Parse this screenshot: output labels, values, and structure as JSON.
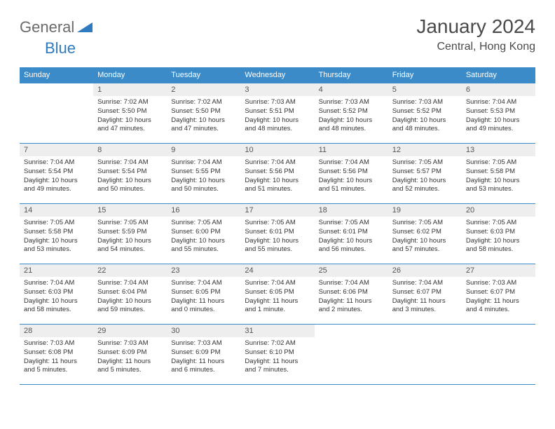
{
  "logo": {
    "general": "General",
    "blue": "Blue"
  },
  "title": "January 2024",
  "location": "Central, Hong Kong",
  "colors": {
    "header_bg": "#3b8bc9",
    "header_text": "#ffffff",
    "border": "#3b8bc9",
    "daynum_bg": "#eeeeee",
    "body_text": "#333333",
    "title_text": "#4a4a4a",
    "logo_gray": "#6b6b6b",
    "logo_blue": "#2f7bbf"
  },
  "weekdays": [
    "Sunday",
    "Monday",
    "Tuesday",
    "Wednesday",
    "Thursday",
    "Friday",
    "Saturday"
  ],
  "weeks": [
    [
      {
        "n": "",
        "sr": "",
        "ss": "",
        "dl": ""
      },
      {
        "n": "1",
        "sr": "Sunrise: 7:02 AM",
        "ss": "Sunset: 5:50 PM",
        "dl": "Daylight: 10 hours and 47 minutes."
      },
      {
        "n": "2",
        "sr": "Sunrise: 7:02 AM",
        "ss": "Sunset: 5:50 PM",
        "dl": "Daylight: 10 hours and 47 minutes."
      },
      {
        "n": "3",
        "sr": "Sunrise: 7:03 AM",
        "ss": "Sunset: 5:51 PM",
        "dl": "Daylight: 10 hours and 48 minutes."
      },
      {
        "n": "4",
        "sr": "Sunrise: 7:03 AM",
        "ss": "Sunset: 5:52 PM",
        "dl": "Daylight: 10 hours and 48 minutes."
      },
      {
        "n": "5",
        "sr": "Sunrise: 7:03 AM",
        "ss": "Sunset: 5:52 PM",
        "dl": "Daylight: 10 hours and 48 minutes."
      },
      {
        "n": "6",
        "sr": "Sunrise: 7:04 AM",
        "ss": "Sunset: 5:53 PM",
        "dl": "Daylight: 10 hours and 49 minutes."
      }
    ],
    [
      {
        "n": "7",
        "sr": "Sunrise: 7:04 AM",
        "ss": "Sunset: 5:54 PM",
        "dl": "Daylight: 10 hours and 49 minutes."
      },
      {
        "n": "8",
        "sr": "Sunrise: 7:04 AM",
        "ss": "Sunset: 5:54 PM",
        "dl": "Daylight: 10 hours and 50 minutes."
      },
      {
        "n": "9",
        "sr": "Sunrise: 7:04 AM",
        "ss": "Sunset: 5:55 PM",
        "dl": "Daylight: 10 hours and 50 minutes."
      },
      {
        "n": "10",
        "sr": "Sunrise: 7:04 AM",
        "ss": "Sunset: 5:56 PM",
        "dl": "Daylight: 10 hours and 51 minutes."
      },
      {
        "n": "11",
        "sr": "Sunrise: 7:04 AM",
        "ss": "Sunset: 5:56 PM",
        "dl": "Daylight: 10 hours and 51 minutes."
      },
      {
        "n": "12",
        "sr": "Sunrise: 7:05 AM",
        "ss": "Sunset: 5:57 PM",
        "dl": "Daylight: 10 hours and 52 minutes."
      },
      {
        "n": "13",
        "sr": "Sunrise: 7:05 AM",
        "ss": "Sunset: 5:58 PM",
        "dl": "Daylight: 10 hours and 53 minutes."
      }
    ],
    [
      {
        "n": "14",
        "sr": "Sunrise: 7:05 AM",
        "ss": "Sunset: 5:58 PM",
        "dl": "Daylight: 10 hours and 53 minutes."
      },
      {
        "n": "15",
        "sr": "Sunrise: 7:05 AM",
        "ss": "Sunset: 5:59 PM",
        "dl": "Daylight: 10 hours and 54 minutes."
      },
      {
        "n": "16",
        "sr": "Sunrise: 7:05 AM",
        "ss": "Sunset: 6:00 PM",
        "dl": "Daylight: 10 hours and 55 minutes."
      },
      {
        "n": "17",
        "sr": "Sunrise: 7:05 AM",
        "ss": "Sunset: 6:01 PM",
        "dl": "Daylight: 10 hours and 55 minutes."
      },
      {
        "n": "18",
        "sr": "Sunrise: 7:05 AM",
        "ss": "Sunset: 6:01 PM",
        "dl": "Daylight: 10 hours and 56 minutes."
      },
      {
        "n": "19",
        "sr": "Sunrise: 7:05 AM",
        "ss": "Sunset: 6:02 PM",
        "dl": "Daylight: 10 hours and 57 minutes."
      },
      {
        "n": "20",
        "sr": "Sunrise: 7:05 AM",
        "ss": "Sunset: 6:03 PM",
        "dl": "Daylight: 10 hours and 58 minutes."
      }
    ],
    [
      {
        "n": "21",
        "sr": "Sunrise: 7:04 AM",
        "ss": "Sunset: 6:03 PM",
        "dl": "Daylight: 10 hours and 58 minutes."
      },
      {
        "n": "22",
        "sr": "Sunrise: 7:04 AM",
        "ss": "Sunset: 6:04 PM",
        "dl": "Daylight: 10 hours and 59 minutes."
      },
      {
        "n": "23",
        "sr": "Sunrise: 7:04 AM",
        "ss": "Sunset: 6:05 PM",
        "dl": "Daylight: 11 hours and 0 minutes."
      },
      {
        "n": "24",
        "sr": "Sunrise: 7:04 AM",
        "ss": "Sunset: 6:05 PM",
        "dl": "Daylight: 11 hours and 1 minute."
      },
      {
        "n": "25",
        "sr": "Sunrise: 7:04 AM",
        "ss": "Sunset: 6:06 PM",
        "dl": "Daylight: 11 hours and 2 minutes."
      },
      {
        "n": "26",
        "sr": "Sunrise: 7:04 AM",
        "ss": "Sunset: 6:07 PM",
        "dl": "Daylight: 11 hours and 3 minutes."
      },
      {
        "n": "27",
        "sr": "Sunrise: 7:03 AM",
        "ss": "Sunset: 6:07 PM",
        "dl": "Daylight: 11 hours and 4 minutes."
      }
    ],
    [
      {
        "n": "28",
        "sr": "Sunrise: 7:03 AM",
        "ss": "Sunset: 6:08 PM",
        "dl": "Daylight: 11 hours and 5 minutes."
      },
      {
        "n": "29",
        "sr": "Sunrise: 7:03 AM",
        "ss": "Sunset: 6:09 PM",
        "dl": "Daylight: 11 hours and 5 minutes."
      },
      {
        "n": "30",
        "sr": "Sunrise: 7:03 AM",
        "ss": "Sunset: 6:09 PM",
        "dl": "Daylight: 11 hours and 6 minutes."
      },
      {
        "n": "31",
        "sr": "Sunrise: 7:02 AM",
        "ss": "Sunset: 6:10 PM",
        "dl": "Daylight: 11 hours and 7 minutes."
      },
      {
        "n": "",
        "sr": "",
        "ss": "",
        "dl": ""
      },
      {
        "n": "",
        "sr": "",
        "ss": "",
        "dl": ""
      },
      {
        "n": "",
        "sr": "",
        "ss": "",
        "dl": ""
      }
    ]
  ]
}
